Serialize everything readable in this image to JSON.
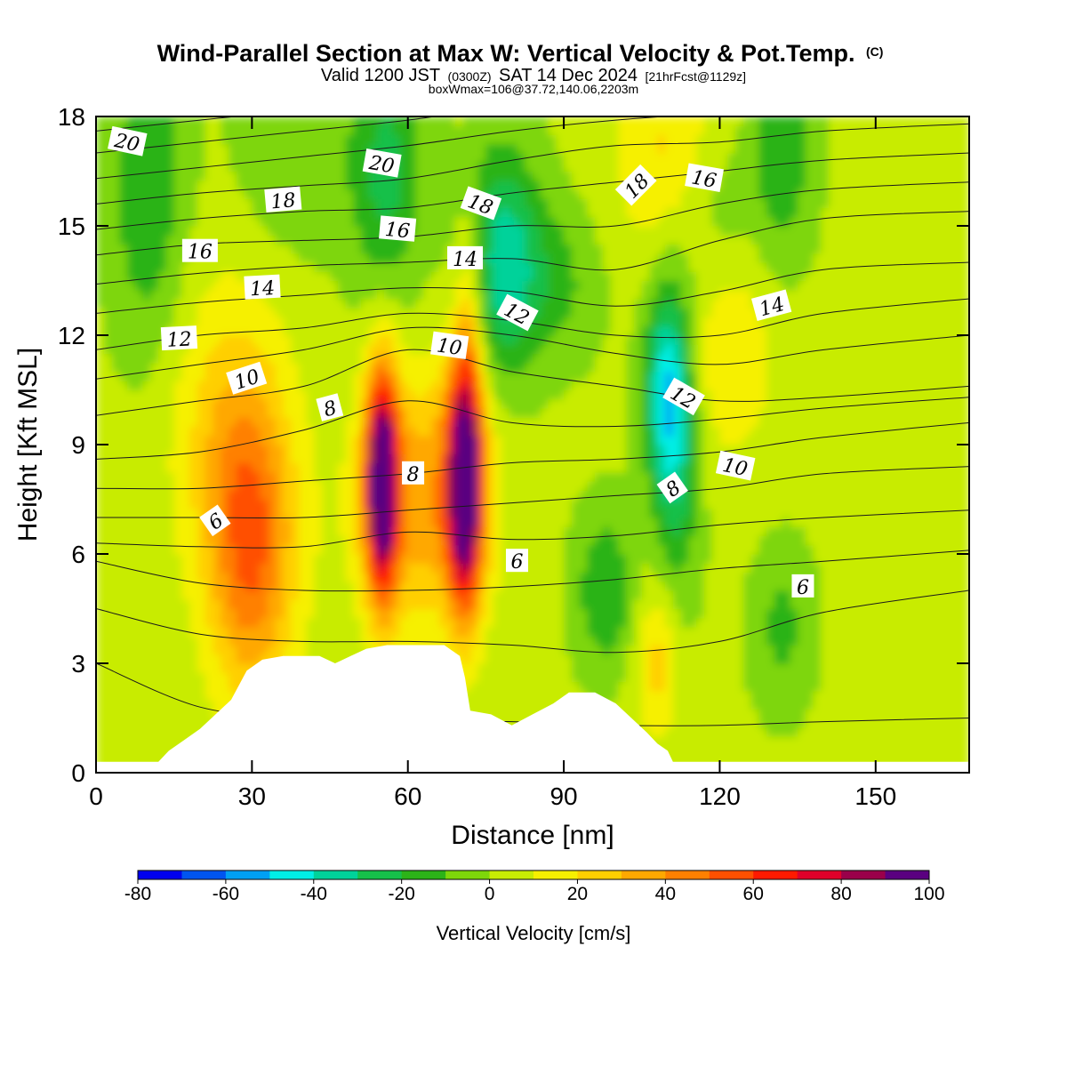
{
  "chart_data": {
    "type": "heatmap",
    "title": "Wind-Parallel Section at Max W: Vertical Velocity & Pot.Temp.",
    "title_mark": "(C)",
    "subtitle": {
      "prefix": "Valid 1200 JST",
      "utc": "(0300Z)",
      "date": "SAT 14 Dec 2024",
      "forecast": "[21hrFcst@1129z]"
    },
    "box_info": "boxWmax=106@37.72,140.06,2203m",
    "xlabel": "Distance [nm]",
    "ylabel": "Height [Kft MSL]",
    "xlim": [
      0,
      168
    ],
    "ylim": [
      0,
      18
    ],
    "x_ticks": [
      "0",
      "30",
      "60",
      "90",
      "120",
      "150"
    ],
    "y_ticks": [
      "0",
      "3",
      "6",
      "9",
      "12",
      "15",
      "18"
    ],
    "colorbar": {
      "label": "Vertical Velocity [cm/s]",
      "ticks": [
        "-80",
        "-60",
        "-40",
        "-20",
        "0",
        "20",
        "40",
        "60",
        "80",
        "100"
      ],
      "min": -80,
      "max": 100,
      "step": 10,
      "colors": [
        "#0000ee",
        "#0055f0",
        "#00a0f4",
        "#00eee6",
        "#00d29a",
        "#16c04a",
        "#2cb318",
        "#7ed60a",
        "#c8ec04",
        "#f6f000",
        "#ffcf00",
        "#ffa800",
        "#ff8000",
        "#ff5000",
        "#ff1a00",
        "#e0002a",
        "#9a004a",
        "#5a0080"
      ]
    },
    "terrain_kft": [
      [
        0,
        0.3
      ],
      [
        12,
        0.3
      ],
      [
        14,
        0.6
      ],
      [
        17,
        0.9
      ],
      [
        20,
        1.2
      ],
      [
        23,
        1.6
      ],
      [
        26,
        2.0
      ],
      [
        29,
        2.8
      ],
      [
        32,
        3.1
      ],
      [
        36,
        3.2
      ],
      [
        43,
        3.2
      ],
      [
        46,
        3.0
      ],
      [
        49,
        3.2
      ],
      [
        52,
        3.4
      ],
      [
        56,
        3.5
      ],
      [
        62,
        3.5
      ],
      [
        67,
        3.5
      ],
      [
        70,
        3.2
      ],
      [
        71,
        2.6
      ],
      [
        72,
        1.7
      ],
      [
        76,
        1.6
      ],
      [
        80,
        1.3
      ],
      [
        84,
        1.6
      ],
      [
        88,
        1.9
      ],
      [
        91,
        2.2
      ],
      [
        96,
        2.2
      ],
      [
        100,
        1.9
      ],
      [
        103,
        1.5
      ],
      [
        106,
        1.1
      ],
      [
        108,
        0.8
      ],
      [
        110,
        0.6
      ],
      [
        111,
        0.3
      ],
      [
        168,
        0.3
      ]
    ],
    "w_cells": [
      {
        "x": 10,
        "y": 16,
        "sx": 5,
        "sy": 3,
        "w": -22
      },
      {
        "x": 38,
        "y": 17,
        "sx": 8,
        "sy": 2,
        "w": -10
      },
      {
        "x": 56,
        "y": 16.5,
        "sx": 5,
        "sy": 2.5,
        "w": -25
      },
      {
        "x": 78,
        "y": 14,
        "sx": 5,
        "sy": 2.2,
        "w": -38
      },
      {
        "x": 88,
        "y": 13.5,
        "sx": 6,
        "sy": 1.5,
        "w": -15
      },
      {
        "x": 110,
        "y": 10.5,
        "sx": 3,
        "sy": 2,
        "w": -48
      },
      {
        "x": 112,
        "y": 8,
        "sx": 3,
        "sy": 2.5,
        "w": -20
      },
      {
        "x": 118,
        "y": 16,
        "sx": 6,
        "sy": 2,
        "w": -18
      },
      {
        "x": 132,
        "y": 17,
        "sx": 4,
        "sy": 2,
        "w": -22
      },
      {
        "x": 98,
        "y": 5,
        "sx": 4,
        "sy": 1.5,
        "w": -22
      },
      {
        "x": 132,
        "y": 4,
        "sx": 4,
        "sy": 1.5,
        "w": -15
      },
      {
        "x": 55,
        "y": 8,
        "sx": 2.2,
        "sy": 2.2,
        "w": 100
      },
      {
        "x": 71,
        "y": 8,
        "sx": 2.4,
        "sy": 2.4,
        "w": 105
      },
      {
        "x": 63,
        "y": 7.5,
        "sx": 9,
        "sy": 2.5,
        "w": 35
      },
      {
        "x": 30,
        "y": 6,
        "sx": 6,
        "sy": 3,
        "w": 45
      },
      {
        "x": 25,
        "y": 9.5,
        "sx": 8,
        "sy": 3,
        "w": 20
      },
      {
        "x": 112,
        "y": 17,
        "sx": 8,
        "sy": 2,
        "w": 25
      },
      {
        "x": 122,
        "y": 11.5,
        "sx": 6,
        "sy": 2,
        "w": 18
      },
      {
        "x": 108,
        "y": 3,
        "sx": 3,
        "sy": 1.5,
        "w": 22
      },
      {
        "x": 72,
        "y": 13,
        "sx": 2,
        "sy": 2,
        "w": 20
      }
    ],
    "theta_levels": [
      {
        "value": 1,
        "x": [
          0,
          20,
          40,
          60,
          80,
          100,
          120,
          140,
          168
        ],
        "y": [
          3.0,
          1.8,
          1.5,
          1.4,
          1.4,
          1.3,
          1.3,
          1.4,
          1.5
        ]
      },
      {
        "value": 3,
        "x": [
          0,
          20,
          40,
          60,
          80,
          100,
          120,
          140,
          168
        ],
        "y": [
          4.5,
          3.8,
          3.6,
          3.6,
          3.5,
          3.3,
          3.6,
          4.4,
          5.0
        ]
      },
      {
        "value": 5,
        "x": [
          0,
          20,
          40,
          60,
          80,
          100,
          120,
          140,
          168
        ],
        "y": [
          5.8,
          5.2,
          5.0,
          5.0,
          5.1,
          5.3,
          5.6,
          5.8,
          6.1
        ]
      },
      {
        "value": 6,
        "x": [
          0,
          20,
          40,
          60,
          80,
          100,
          120,
          140,
          168
        ],
        "y": [
          6.3,
          6.2,
          6.2,
          6.6,
          6.4,
          6.5,
          6.8,
          7.0,
          7.2
        ]
      },
      {
        "value": 7,
        "x": [
          0,
          20,
          40,
          60,
          80,
          100,
          120,
          140,
          168
        ],
        "y": [
          7.0,
          7.0,
          7.0,
          7.2,
          7.4,
          7.6,
          7.8,
          8.2,
          8.4
        ]
      },
      {
        "value": 8,
        "x": [
          0,
          20,
          40,
          60,
          80,
          100,
          120,
          140,
          168
        ],
        "y": [
          7.8,
          7.8,
          8.0,
          8.2,
          8.5,
          8.6,
          8.8,
          9.2,
          9.6
        ]
      },
      {
        "value": 9,
        "x": [
          0,
          20,
          40,
          60,
          80,
          100,
          120,
          140,
          168
        ],
        "y": [
          8.6,
          8.8,
          9.4,
          10.2,
          9.6,
          9.5,
          9.7,
          10.0,
          10.3
        ]
      },
      {
        "value": 10,
        "x": [
          0,
          20,
          40,
          60,
          80,
          100,
          120,
          140,
          168
        ],
        "y": [
          9.8,
          10.2,
          10.6,
          11.6,
          11.0,
          10.6,
          10.2,
          10.3,
          10.6
        ]
      },
      {
        "value": 11,
        "x": [
          0,
          20,
          40,
          60,
          80,
          100,
          120,
          140,
          168
        ],
        "y": [
          10.8,
          11.2,
          11.6,
          12.2,
          12.0,
          11.5,
          11.2,
          11.6,
          12.0
        ]
      },
      {
        "value": 12,
        "x": [
          0,
          20,
          40,
          60,
          80,
          100,
          120,
          140,
          168
        ],
        "y": [
          11.6,
          12.0,
          12.2,
          12.6,
          12.4,
          12.0,
          12.0,
          12.6,
          13.0
        ]
      },
      {
        "value": 13,
        "x": [
          0,
          20,
          40,
          60,
          80,
          100,
          120,
          140,
          168
        ],
        "y": [
          12.6,
          12.9,
          13.1,
          13.3,
          13.2,
          12.8,
          13.2,
          13.8,
          14.0
        ]
      },
      {
        "value": 14,
        "x": [
          0,
          20,
          40,
          60,
          80,
          100,
          120,
          140,
          168
        ],
        "y": [
          13.4,
          13.7,
          13.9,
          14.0,
          14.1,
          13.8,
          14.6,
          15.2,
          15.4
        ]
      },
      {
        "value": 15,
        "x": [
          0,
          20,
          40,
          60,
          80,
          100,
          120,
          140,
          168
        ],
        "y": [
          14.2,
          14.5,
          14.6,
          14.7,
          15.0,
          15.0,
          15.6,
          16.0,
          16.2
        ]
      },
      {
        "value": 16,
        "x": [
          0,
          20,
          40,
          60,
          80,
          100,
          120,
          140,
          168
        ],
        "y": [
          14.9,
          15.2,
          15.4,
          15.5,
          15.9,
          16.2,
          16.5,
          16.8,
          17.0
        ]
      },
      {
        "value": 17,
        "x": [
          0,
          20,
          40,
          60,
          80,
          100,
          120,
          140,
          168
        ],
        "y": [
          15.6,
          15.9,
          16.1,
          16.3,
          16.8,
          17.2,
          17.3,
          17.6,
          17.8
        ]
      },
      {
        "value": 18,
        "x": [
          0,
          20,
          40,
          60,
          80,
          100,
          120,
          140,
          168
        ],
        "y": [
          16.3,
          16.6,
          16.9,
          17.2,
          17.6,
          17.9,
          18.1,
          18.3,
          18.5
        ]
      },
      {
        "value": 19,
        "x": [
          0,
          20,
          40,
          60,
          80,
          100,
          120,
          140,
          168
        ],
        "y": [
          17.0,
          17.3,
          17.6,
          17.9,
          18.3,
          18.6,
          18.8,
          19.0,
          19.2
        ]
      },
      {
        "value": 20,
        "x": [
          0,
          20,
          40,
          60,
          80,
          100,
          120,
          140,
          168
        ],
        "y": [
          17.6,
          17.9,
          18.2,
          18.6,
          19.0,
          19.3,
          19.5,
          19.7,
          19.9
        ]
      }
    ],
    "contour_labels": [
      {
        "text": "20",
        "x": 6,
        "y": 17.3,
        "angle": 12
      },
      {
        "text": "20",
        "x": 55,
        "y": 16.7,
        "angle": 10
      },
      {
        "text": "18",
        "x": 36,
        "y": 15.7,
        "angle": -5
      },
      {
        "text": "18",
        "x": 74,
        "y": 15.6,
        "angle": 20
      },
      {
        "text": "18",
        "x": 104,
        "y": 16.1,
        "angle": -45
      },
      {
        "text": "16",
        "x": 20,
        "y": 14.3,
        "angle": 0
      },
      {
        "text": "16",
        "x": 58,
        "y": 14.9,
        "angle": 5
      },
      {
        "text": "16",
        "x": 117,
        "y": 16.3,
        "angle": 10
      },
      {
        "text": "14",
        "x": 32,
        "y": 13.3,
        "angle": -3
      },
      {
        "text": "14",
        "x": 71,
        "y": 14.1,
        "angle": 0
      },
      {
        "text": "14",
        "x": 130,
        "y": 12.8,
        "angle": -15
      },
      {
        "text": "12",
        "x": 16,
        "y": 11.9,
        "angle": -3
      },
      {
        "text": "12",
        "x": 81,
        "y": 12.6,
        "angle": 28
      },
      {
        "text": "12",
        "x": 113,
        "y": 10.3,
        "angle": 30
      },
      {
        "text": "10",
        "x": 29,
        "y": 10.8,
        "angle": -18
      },
      {
        "text": "10",
        "x": 68,
        "y": 11.7,
        "angle": 8
      },
      {
        "text": "10",
        "x": 123,
        "y": 8.4,
        "angle": 12
      },
      {
        "text": "8",
        "x": 45,
        "y": 10.0,
        "angle": -15
      },
      {
        "text": "8",
        "x": 61,
        "y": 8.2,
        "angle": 0
      },
      {
        "text": "8",
        "x": 111,
        "y": 7.8,
        "angle": -35
      },
      {
        "text": "6",
        "x": 23,
        "y": 6.9,
        "angle": -35
      },
      {
        "text": "6",
        "x": 81,
        "y": 5.8,
        "angle": 0
      },
      {
        "text": "6",
        "x": 136,
        "y": 5.1,
        "angle": 0
      }
    ]
  }
}
